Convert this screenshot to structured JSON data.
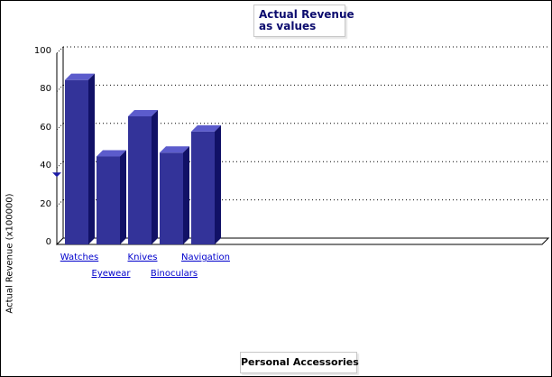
{
  "chart_data": {
    "type": "bar",
    "title": "Actual Revenue as values",
    "title_lines": [
      "Actual Revenue",
      "as values"
    ],
    "ylabel": "Actual Revenue (x100000)",
    "xlabel": "Personal Accessories",
    "categories": [
      "Watches",
      "Eyewear",
      "Knives",
      "Binoculars",
      "Navigation"
    ],
    "values": [
      86,
      46,
      67,
      48,
      59
    ],
    "ylim": [
      0,
      100
    ],
    "yticks": [
      0,
      20,
      40,
      60,
      80,
      100
    ],
    "grid": true,
    "style": "3d-bar",
    "bar_color": "#333399",
    "bar_top_color": "#5c5ccc",
    "bar_side_color": "#111166"
  }
}
